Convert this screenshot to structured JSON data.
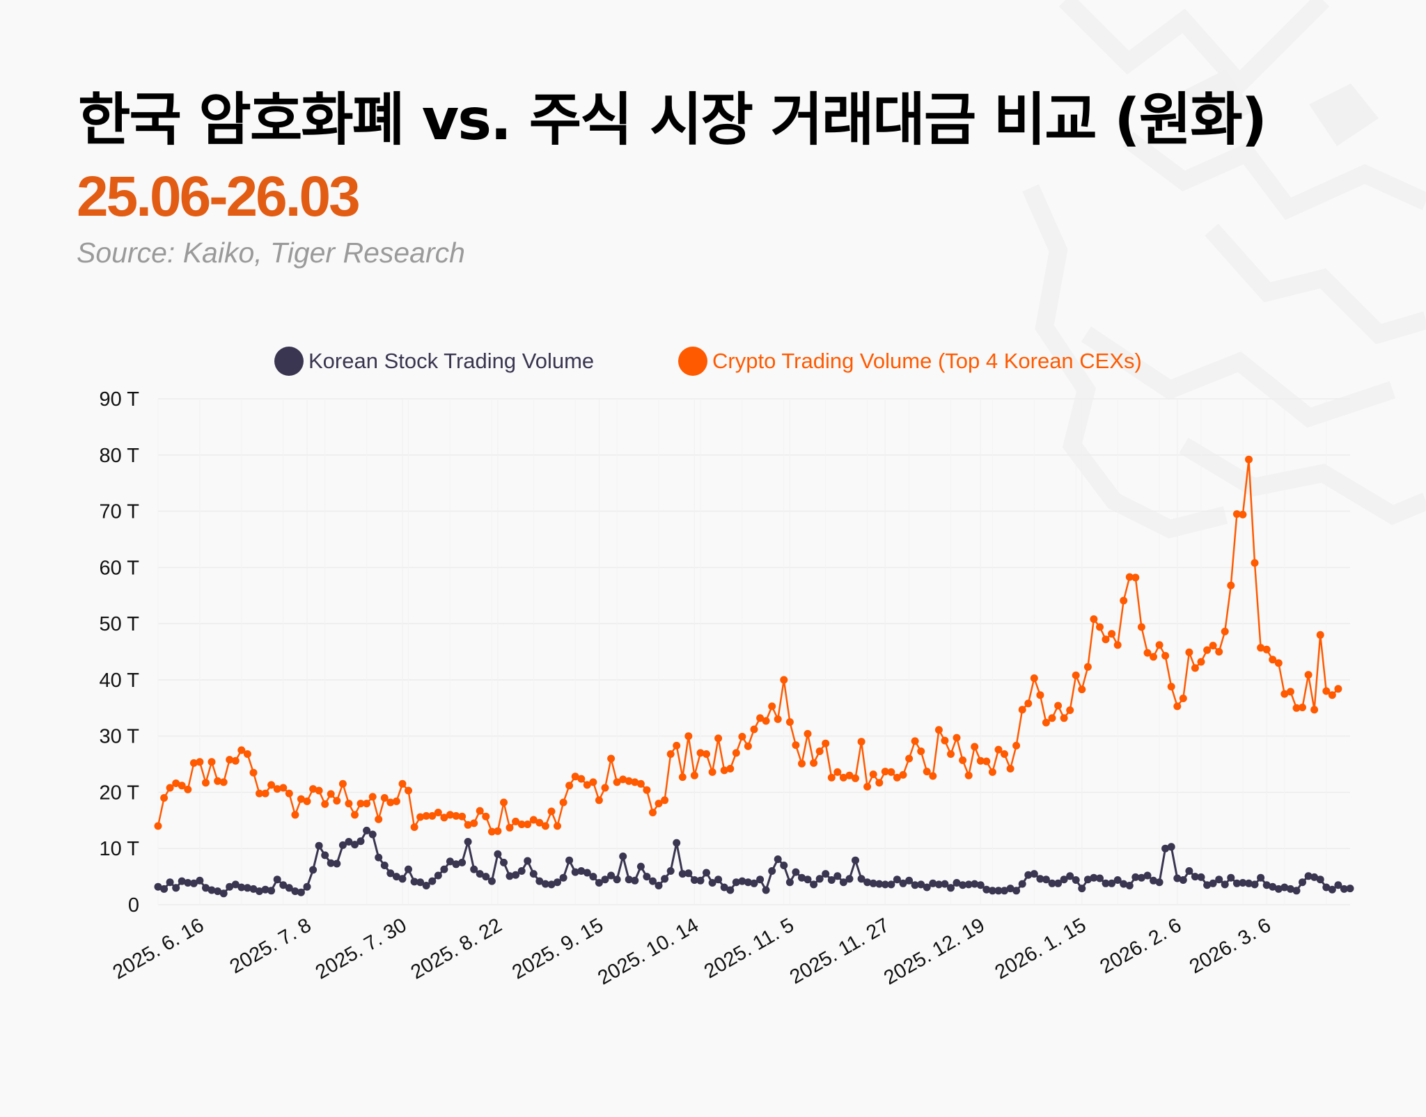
{
  "header": {
    "title": "한국 암호화폐 vs. 주식 시장 거래대금 비교 (원화)",
    "subtitle": "25.06-26.03",
    "source": "Source: Kaiko, Tiger Research"
  },
  "colors": {
    "stock": "#3a3550",
    "crypto": "#ff5a00",
    "subtitle": "#e25c13",
    "grid": "#ececec",
    "background": "#f9f9f9"
  },
  "chart_data": {
    "type": "line",
    "ylim": [
      0,
      90
    ],
    "y_ticks": [
      "0",
      "10 T",
      "20 T",
      "30 T",
      "40 T",
      "50 T",
      "60 T",
      "70 T",
      "80 T",
      "90 T"
    ],
    "x_ticks": [
      {
        "label": "2025. 6. 16",
        "index": 7
      },
      {
        "label": "2025. 7. 8",
        "index": 25
      },
      {
        "label": "2025. 7. 30",
        "index": 41
      },
      {
        "label": "2025. 8. 22",
        "index": 57
      },
      {
        "label": "2025. 9. 15",
        "index": 74
      },
      {
        "label": "2025. 10. 14",
        "index": 90
      },
      {
        "label": "2025. 11. 5",
        "index": 106
      },
      {
        "label": "2025. 11. 27",
        "index": 122
      },
      {
        "label": "2025. 12. 19",
        "index": 138
      },
      {
        "label": "2026. 1. 15",
        "index": 155
      },
      {
        "label": "2026. 2. 6",
        "index": 171
      },
      {
        "label": "2026. 3. 6",
        "index": 186
      }
    ],
    "grid": true,
    "legend_position": "top",
    "series": [
      {
        "name": "Korean Stock Trading Volume",
        "color": "#3a3550",
        "values": [
          3.2,
          2.8,
          4.0,
          3.0,
          4.2,
          3.9,
          3.8,
          4.3,
          3.0,
          2.6,
          2.4,
          2.0,
          3.2,
          3.6,
          3.1,
          3.0,
          2.8,
          2.4,
          2.7,
          2.5,
          4.5,
          3.5,
          3.0,
          2.4,
          2.2,
          3.2,
          6.2,
          10.5,
          8.8,
          7.4,
          7.3,
          10.6,
          11.2,
          10.7,
          11.3,
          13.2,
          12.5,
          8.4,
          7.0,
          5.6,
          5.0,
          4.6,
          6.3,
          4.1,
          4.0,
          3.4,
          4.2,
          5.2,
          6.3,
          7.7,
          7.2,
          7.5,
          11.2,
          6.3,
          5.5,
          5.0,
          4.2,
          9.0,
          7.5,
          5.1,
          5.3,
          6.0,
          7.8,
          5.5,
          4.2,
          3.7,
          3.6,
          4.0,
          4.8,
          7.9,
          5.8,
          6.0,
          5.7,
          5.0,
          3.9,
          4.5,
          5.2,
          4.5,
          8.6,
          4.5,
          4.3,
          6.8,
          5.0,
          4.2,
          3.4,
          4.6,
          6.0,
          11.0,
          5.5,
          5.6,
          4.4,
          4.3,
          5.7,
          3.9,
          4.5,
          3.1,
          2.6,
          4.0,
          4.2,
          4.0,
          3.8,
          4.5,
          2.6,
          6.0,
          8.1,
          7.0,
          4.0,
          5.8,
          4.8,
          4.5,
          3.6,
          4.6,
          5.5,
          4.4,
          5.1,
          4.0,
          4.6,
          7.9,
          4.6,
          4.0,
          3.8,
          3.7,
          3.6,
          3.6,
          4.5,
          3.8,
          4.3,
          3.5,
          3.6,
          3.1,
          3.8,
          3.6,
          3.7,
          3.0,
          3.9,
          3.5,
          3.6,
          3.7,
          3.5,
          2.7,
          2.5,
          2.5,
          2.5,
          2.9,
          2.5,
          3.7,
          5.3,
          5.5,
          4.6,
          4.5,
          3.8,
          3.8,
          4.5,
          5.1,
          4.4,
          2.9,
          4.5,
          4.8,
          4.7,
          3.8,
          3.8,
          4.4,
          3.7,
          3.4,
          4.9,
          4.8,
          5.2,
          4.3,
          4.0,
          10.0,
          10.3,
          4.7,
          4.4,
          6.0,
          5.0,
          4.9,
          3.5,
          3.8,
          4.5,
          3.6,
          4.8,
          3.8,
          3.9,
          3.8,
          3.6,
          4.8,
          3.5,
          3.2,
          2.8,
          3.1,
          2.8,
          2.5,
          4.0,
          5.1,
          4.9,
          4.5,
          3.1,
          2.7,
          3.5,
          2.8,
          2.9
        ]
      },
      {
        "name": "Crypto Trading Volume (Top 4 Korean CEXs)",
        "color": "#ff5a00",
        "values": [
          14.0,
          19.0,
          20.8,
          21.6,
          21.2,
          20.5,
          25.2,
          25.4,
          21.7,
          25.4,
          22.0,
          21.8,
          25.8,
          25.6,
          27.5,
          26.8,
          23.5,
          19.8,
          19.8,
          21.3,
          20.6,
          20.8,
          19.8,
          16.0,
          18.8,
          18.4,
          20.6,
          20.3,
          17.9,
          19.7,
          18.5,
          21.5,
          18.0,
          16.0,
          18.0,
          18.0,
          19.2,
          15.2,
          19.0,
          18.2,
          18.4,
          21.5,
          20.3,
          13.8,
          15.6,
          15.8,
          15.8,
          16.4,
          15.5,
          16.0,
          15.8,
          15.7,
          14.2,
          14.5,
          16.7,
          15.7,
          13.0,
          13.1,
          18.2,
          13.7,
          14.8,
          14.3,
          14.3,
          15.1,
          14.6,
          14.0,
          16.6,
          14.0,
          18.2,
          21.2,
          22.8,
          22.4,
          21.3,
          21.8,
          18.6,
          20.8,
          26.0,
          21.8,
          22.3,
          22.0,
          21.8,
          21.5,
          20.4,
          16.4,
          18.0,
          18.6,
          26.8,
          28.3,
          22.7,
          30.0,
          23.0,
          27.0,
          26.8,
          23.6,
          29.6,
          23.9,
          24.2,
          27.0,
          29.9,
          28.2,
          31.2,
          33.2,
          32.7,
          35.3,
          33.0,
          40.0,
          32.5,
          28.4,
          25.1,
          30.4,
          25.2,
          27.3,
          28.7,
          22.6,
          23.6,
          22.6,
          23.0,
          22.5,
          29.0,
          21.0,
          23.2,
          21.7,
          23.7,
          23.6,
          22.6,
          23.1,
          26.0,
          29.1,
          27.3,
          23.7,
          22.9,
          31.1,
          29.2,
          26.8,
          29.7,
          25.7,
          23.0,
          28.1,
          25.6,
          25.5,
          23.6,
          27.6,
          26.8,
          24.2,
          28.3,
          34.7,
          35.8,
          40.3,
          37.3,
          32.4,
          33.2,
          35.4,
          33.2,
          34.6,
          40.8,
          38.3,
          42.3,
          50.8,
          49.4,
          47.2,
          48.2,
          46.2,
          54.1,
          58.3,
          58.2,
          49.4,
          44.8,
          44.1,
          46.2,
          44.3,
          38.8,
          35.3,
          36.7,
          44.9,
          42.1,
          43.2,
          45.3,
          46.1,
          45.0,
          48.6,
          56.8,
          69.5,
          69.4,
          79.2,
          60.8,
          45.7,
          45.4,
          43.6,
          43.0,
          37.5,
          37.9,
          35.0,
          35.1,
          40.9,
          34.7,
          48.0,
          38.0,
          37.3,
          38.4
        ]
      }
    ]
  }
}
